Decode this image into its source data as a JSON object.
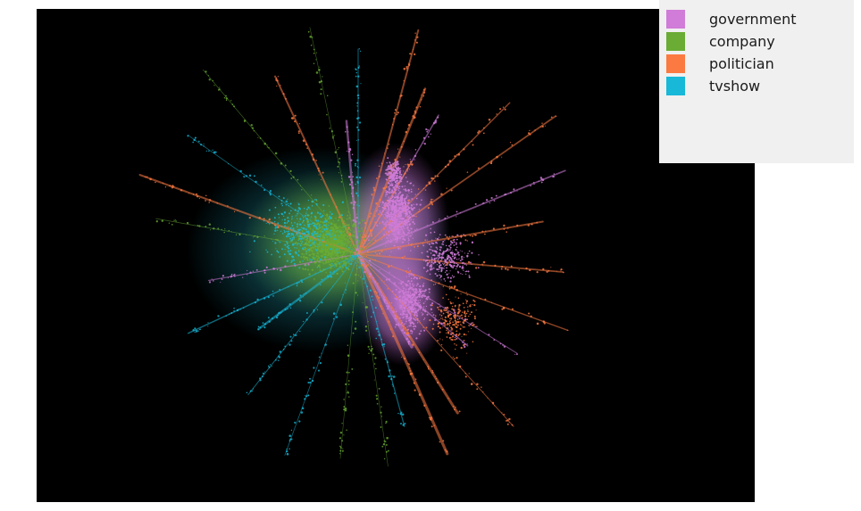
{
  "legend": {
    "items": [
      {
        "label": "government",
        "color": "#d07cd8"
      },
      {
        "label": "company",
        "color": "#6aac34"
      },
      {
        "label": "politician",
        "color": "#fb7a42"
      },
      {
        "label": "tvshow",
        "color": "#17b8d8"
      }
    ]
  },
  "plot": {
    "background": "#000000"
  }
}
